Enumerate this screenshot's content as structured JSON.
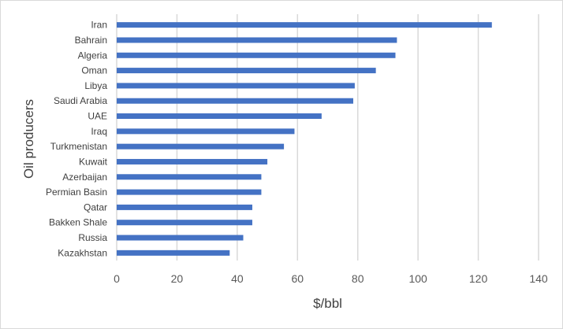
{
  "chart_data": {
    "type": "bar",
    "orientation": "horizontal",
    "title": "",
    "xlabel": "$/bbl",
    "ylabel": "Oil producers",
    "xlim": [
      0,
      140
    ],
    "xticks": [
      0,
      20,
      40,
      60,
      80,
      100,
      120,
      140
    ],
    "grid": true,
    "legend": "none",
    "bar_color": "#4472c4",
    "categories": [
      "Iran",
      "Bahrain",
      "Algeria",
      "Oman",
      "Libya",
      "Saudi Arabia",
      "UAE",
      "Iraq",
      "Turkmenistan",
      "Kuwait",
      "Azerbaijan",
      "Permian Basin",
      "Qatar",
      "Bakken Shale",
      "Russia",
      "Kazakhstan"
    ],
    "values": [
      124.5,
      93,
      92.5,
      86,
      79,
      78.5,
      68,
      59,
      55.5,
      50,
      48,
      48,
      45,
      45,
      42,
      37.5
    ]
  }
}
